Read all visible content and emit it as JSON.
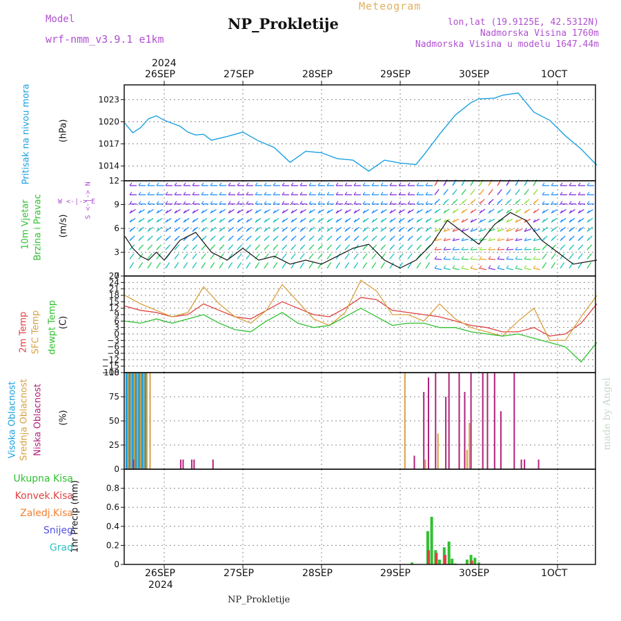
{
  "header": {
    "model_label": "Model",
    "model_name": "wrf-nmm_v3.9.1  e1km",
    "title": "NP_Prokletije",
    "meteogram": "Meteogram",
    "lonlat": "lon,lat (19.9125E, 42.5312N)",
    "altitude": "Nadmorska Visina 1760m",
    "altitude_model": "Nadmorska Visina u modelu 1647.44m"
  },
  "dates": {
    "year": "2024",
    "labels": [
      "26SEP",
      "27SEP",
      "28SEP",
      "29SEP",
      "30SEP",
      "1OCT"
    ]
  },
  "panel_labels": {
    "pressure": [
      "Pritisak na nivou mora",
      "(hPa)"
    ],
    "wind": [
      "10m Vjetar",
      "Brzina i Pravac",
      "(m/s)"
    ],
    "compass": "W <-|-> E",
    "compass_v": "S <-|-> N",
    "temp": [
      "2m Temp",
      "SFC Temp",
      "dewpt Temp",
      "(C)"
    ],
    "cloud": [
      "Visoka Oblacnost",
      "Srednja Oblacnost",
      "Niska Oblacnost",
      "(%)"
    ],
    "precip_unit": "1hr Precip (mm)",
    "precip_legend": [
      "Ukupna Kisa",
      "Konvek.Kisa",
      "Zaledj.Kisa",
      "Snijeg",
      "Grad"
    ]
  },
  "footer": "NP_Prokletije",
  "watermark": "made by Angel",
  "colors": {
    "pressure": "#1aa0e0",
    "t2m": "#e04040",
    "sfc": "#d8a040",
    "dewpt": "#30c030",
    "cloud_high": "#1aa0e0",
    "cloud_mid": "#d8a040",
    "cloud_low": "#b0207a",
    "precip_total": "#30c030",
    "precip_conv": "#e04040",
    "precip_frz": "#f08030",
    "precip_snow": "#5050e0",
    "precip_hail": "#30c0c0"
  },
  "chart_data": [
    {
      "type": "line",
      "name": "pressure",
      "unit": "hPa",
      "ylim": [
        1012,
        1025
      ],
      "yticks": [
        1014,
        1017,
        1020,
        1023
      ],
      "x_days": [
        -0.5,
        -0.4,
        -0.3,
        -0.2,
        -0.1,
        0,
        0.1,
        0.2,
        0.3,
        0.4,
        0.5,
        0.6,
        0.8,
        1.0,
        1.2,
        1.4,
        1.6,
        1.8,
        2.0,
        2.2,
        2.4,
        2.6,
        2.8,
        3.0,
        3.2,
        3.3,
        3.5,
        3.7,
        3.9,
        4.0,
        4.2,
        4.3,
        4.5,
        4.7,
        4.9,
        5.1,
        5.3,
        5.5
      ],
      "values": [
        1019.8,
        1018.5,
        1019.2,
        1020.4,
        1020.8,
        1020.2,
        1019.8,
        1019.4,
        1018.6,
        1018.2,
        1018.3,
        1017.5,
        1018.0,
        1018.6,
        1017.4,
        1016.5,
        1014.5,
        1016.0,
        1015.8,
        1015.0,
        1014.8,
        1013.3,
        1014.8,
        1014.4,
        1014.2,
        1015.5,
        1018.3,
        1020.9,
        1022.6,
        1023.1,
        1023.2,
        1023.6,
        1023.9,
        1021.3,
        1020.2,
        1018.1,
        1016.3,
        1014.1
      ]
    },
    {
      "type": "line",
      "name": "wind_speed",
      "unit": "m/s",
      "ylim": [
        0,
        12
      ],
      "yticks": [
        0,
        3,
        6,
        9,
        12
      ],
      "x_days": [
        -0.5,
        -0.4,
        -0.3,
        -0.2,
        -0.1,
        0,
        0.2,
        0.4,
        0.6,
        0.8,
        1.0,
        1.2,
        1.4,
        1.6,
        1.8,
        2.0,
        2.2,
        2.4,
        2.6,
        2.8,
        3.0,
        3.2,
        3.4,
        3.6,
        3.8,
        4.0,
        4.2,
        4.4,
        4.6,
        4.8,
        5.0,
        5.2,
        5.5
      ],
      "values": [
        5.0,
        3.5,
        2.5,
        2.0,
        3.0,
        2.0,
        4.5,
        5.5,
        3.0,
        2.0,
        3.5,
        2.0,
        2.5,
        1.5,
        2.0,
        1.5,
        2.5,
        3.5,
        4.0,
        2.0,
        1.0,
        2.0,
        4.0,
        7.0,
        5.5,
        4.0,
        6.5,
        8.0,
        7.0,
        4.5,
        3.0,
        1.5,
        2.0
      ]
    },
    {
      "type": "line",
      "name": "temperature",
      "unit": "C",
      "ylim": [
        -18,
        27
      ],
      "yticks": [
        -18,
        -15,
        -12,
        -9,
        -6,
        -3,
        0,
        3,
        6,
        9,
        12,
        15,
        18,
        21,
        24,
        27
      ],
      "x_days": [
        -0.5,
        -0.3,
        -0.1,
        0.1,
        0.3,
        0.5,
        0.7,
        0.9,
        1.1,
        1.3,
        1.5,
        1.7,
        1.9,
        2.1,
        2.3,
        2.5,
        2.7,
        2.9,
        3.1,
        3.3,
        3.5,
        3.7,
        3.9,
        4.1,
        4.3,
        4.5,
        4.7,
        4.9,
        5.1,
        5.3,
        5.5
      ],
      "series": [
        {
          "name": "2m Temp",
          "values": [
            13,
            11,
            10,
            8,
            9,
            14,
            11,
            8,
            7,
            11,
            15,
            12,
            9,
            8,
            12,
            17,
            16,
            11,
            10,
            9,
            8,
            6,
            4,
            3,
            1,
            1,
            3,
            -1,
            0,
            5,
            14
          ]
        },
        {
          "name": "SFC Temp",
          "values": [
            18,
            14,
            11,
            8,
            10,
            22,
            14,
            8,
            5,
            11,
            23,
            15,
            7,
            4,
            10,
            25,
            20,
            9,
            9,
            6,
            14,
            7,
            3,
            1,
            -1,
            6,
            12,
            -3,
            -3,
            8,
            18
          ]
        },
        {
          "name": "dewpt Temp",
          "values": [
            6,
            5,
            7,
            5,
            7,
            9,
            5,
            2,
            1,
            6,
            10,
            5,
            3,
            4,
            8,
            12,
            8,
            4,
            5,
            5,
            3,
            3,
            1,
            0,
            -1,
            0,
            -2,
            -4,
            -6,
            -13,
            -4
          ]
        }
      ]
    },
    {
      "type": "bar",
      "name": "cloudiness",
      "unit": "%",
      "ylim": [
        0,
        100
      ],
      "yticks": [
        0,
        25,
        50,
        75,
        100
      ],
      "series": [
        {
          "name": "Visoka Oblacnost",
          "x_days": [
            -0.48,
            -0.44,
            -0.4,
            -0.36,
            -0.32,
            -0.28,
            -0.24,
            2.95
          ],
          "values": [
            100,
            100,
            100,
            100,
            100,
            100,
            100,
            4
          ]
        },
        {
          "name": "Srednja Oblacnost",
          "x_days": [
            -0.46,
            -0.42,
            -0.38,
            -0.34,
            -0.3,
            -0.26,
            -0.22,
            -0.18,
            3.06,
            3.15,
            3.32,
            3.48,
            3.85,
            3.88
          ],
          "values": [
            100,
            100,
            100,
            100,
            100,
            100,
            100,
            100,
            100,
            5,
            10,
            37,
            20,
            48
          ]
        },
        {
          "name": "Niska Oblacnost",
          "x_days": [
            -0.47,
            -0.43,
            -0.39,
            0.21,
            0.24,
            0.35,
            0.38,
            0.55,
            0.62,
            1.55,
            2.45,
            2.62,
            3.18,
            3.3,
            3.36,
            3.45,
            3.58,
            3.62,
            3.75,
            3.82,
            3.9,
            4.05,
            4.11,
            4.2,
            4.28,
            4.45,
            4.54,
            4.58,
            4.76
          ],
          "values": [
            8,
            8,
            10,
            10,
            10,
            10,
            10,
            8,
            10,
            5,
            6,
            5,
            14,
            80,
            95,
            100,
            75,
            100,
            100,
            80,
            100,
            100,
            100,
            100,
            60,
            100,
            10,
            10,
            10
          ]
        }
      ]
    },
    {
      "type": "bar",
      "name": "precipitation",
      "unit": "mm",
      "ylim": [
        0,
        1.0
      ],
      "yticks": [
        0,
        0.2,
        0.4,
        0.6,
        0.8
      ],
      "series": [
        {
          "name": "Ukupna Kisa",
          "x_days": [
            3.15,
            3.35,
            3.4,
            3.45,
            3.5,
            3.56,
            3.62,
            3.66,
            3.7,
            3.85,
            3.9,
            3.95,
            4.0
          ],
          "values": [
            0.02,
            0.35,
            0.5,
            0.15,
            0.05,
            0.18,
            0.24,
            0.06,
            0.01,
            0.05,
            0.1,
            0.07,
            0.02
          ]
        },
        {
          "name": "Konvek.Kisa",
          "x_days": [
            3.36,
            3.46,
            3.57,
            3.91
          ],
          "values": [
            0.15,
            0.12,
            0.1,
            0.04
          ]
        }
      ]
    }
  ]
}
